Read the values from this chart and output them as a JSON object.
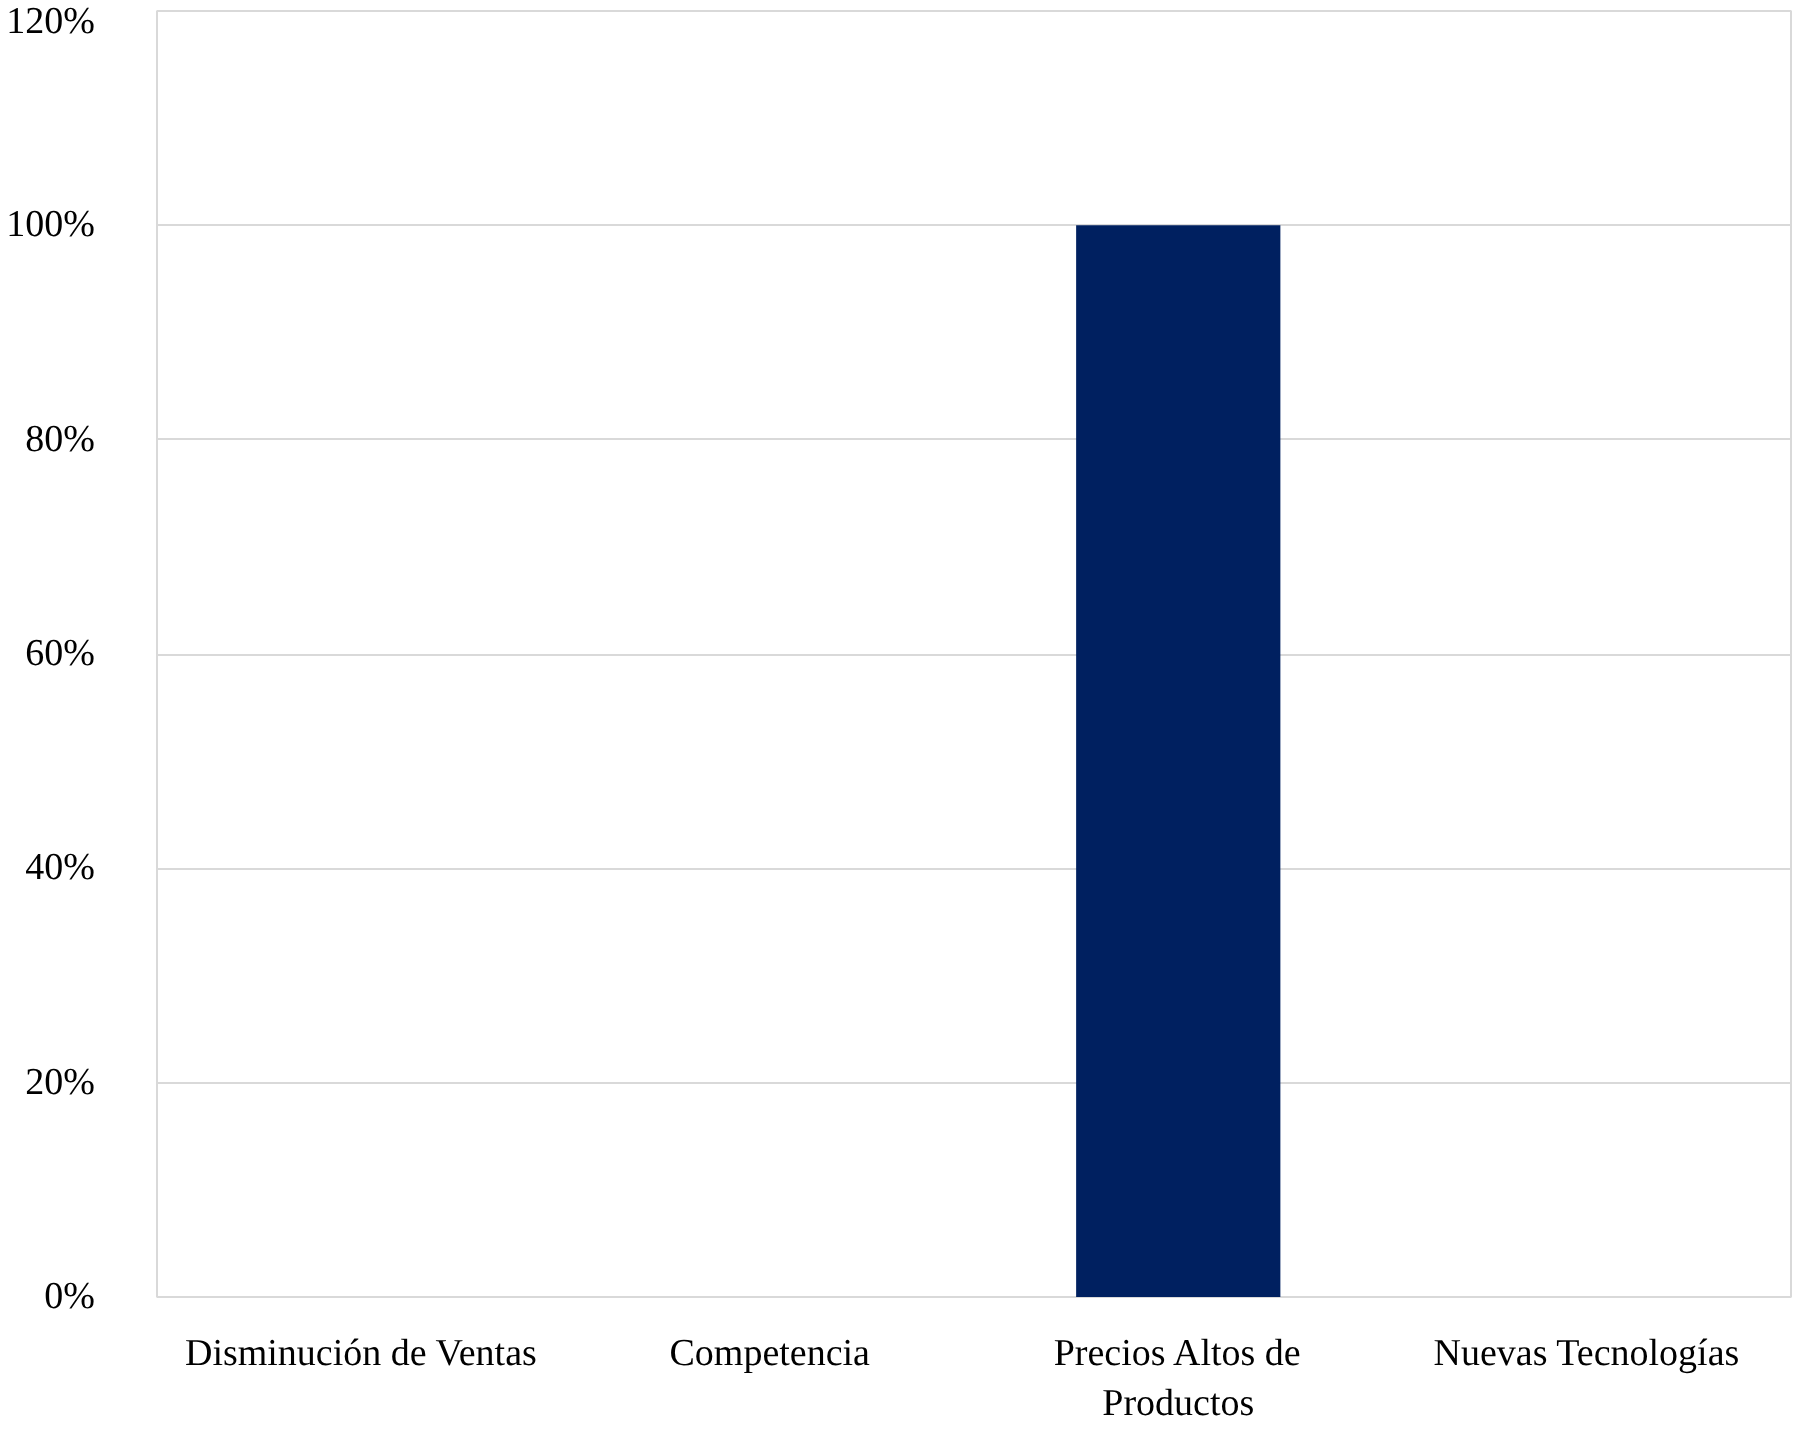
{
  "chart_data": {
    "type": "bar",
    "categories": [
      "Disminución de Ventas",
      "Competencia",
      "Precios Altos de Productos",
      "Nuevas Tecnologías"
    ],
    "values": [
      0,
      0,
      100,
      0
    ],
    "color": "#002060",
    "ylim": [
      0,
      120
    ],
    "yticks": [
      {
        "value": 0,
        "label": "0%"
      },
      {
        "value": 20,
        "label": "20%"
      },
      {
        "value": 40,
        "label": "40%"
      },
      {
        "value": 60,
        "label": "60%"
      },
      {
        "value": 80,
        "label": "80%"
      },
      {
        "value": 100,
        "label": "100%"
      },
      {
        "value": 120,
        "label": "120%"
      }
    ],
    "grid": "y"
  }
}
